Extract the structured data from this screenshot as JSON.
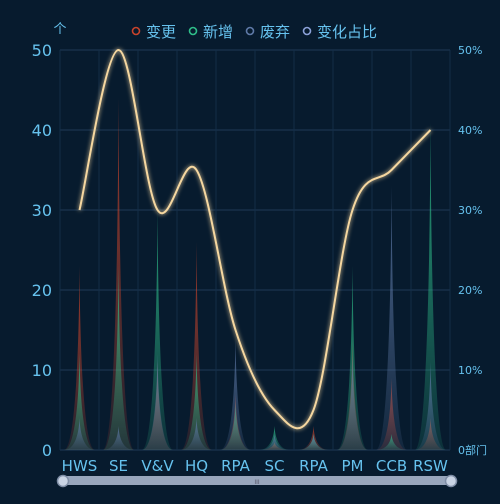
{
  "chart_data": {
    "type": "bar",
    "categories": [
      "HWS",
      "SE",
      "V&V",
      "HQ",
      "RPA",
      "SC",
      "RPA",
      "PM",
      "CCB",
      "RSW"
    ],
    "series": [
      {
        "name": "变更",
        "color": "#c8432b",
        "values": [
          23,
          44,
          11,
          26,
          7,
          1,
          3,
          14,
          9,
          4
        ]
      },
      {
        "name": "新增",
        "color": "#2fbf8a",
        "values": [
          12,
          23,
          30,
          12,
          6,
          3,
          2,
          23,
          2,
          41
        ]
      },
      {
        "name": "废弃",
        "color": "#5f7aa8",
        "values": [
          4,
          3,
          12,
          4,
          14,
          2,
          2,
          12,
          33,
          11
        ]
      }
    ],
    "line_series": {
      "name": "变化占比",
      "color": "#f5d7a0",
      "values": [
        30,
        50,
        30,
        35,
        15,
        5,
        5,
        30,
        35,
        40
      ]
    },
    "y_left": {
      "unit": "个",
      "ylim": [
        0,
        50
      ],
      "ticks": [
        0,
        10,
        20,
        30,
        40,
        50
      ]
    },
    "y_right": {
      "ylim": [
        0,
        50
      ],
      "ticks": [
        "0部门",
        "10%",
        "20%",
        "30%",
        "40%",
        "50%"
      ]
    },
    "grid": true,
    "legend_position": "top-center",
    "datazoom": {
      "handle_label": "III"
    }
  }
}
